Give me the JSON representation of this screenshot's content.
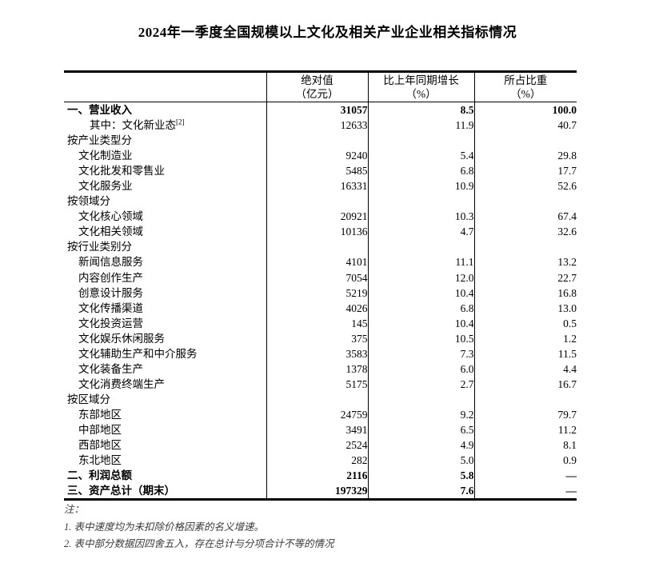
{
  "page": {
    "title": "2024年一季度全国规模以上文化及相关产业企业相关指标情况"
  },
  "table": {
    "columns": [
      {
        "line1": "绝对值",
        "line2": "（亿元）"
      },
      {
        "line1": "比上年同期增长",
        "line2": "（%）"
      },
      {
        "line1": "所占比重",
        "line2": "（%）"
      }
    ],
    "rows": [
      {
        "label": "一、营业收入",
        "indent": 0,
        "bold": true,
        "abs": "31057",
        "growth": "8.5",
        "share": "100.0"
      },
      {
        "label": "其中：文化新业态",
        "sup": "[2]",
        "indent": 2,
        "bold": false,
        "abs": "12633",
        "growth": "11.9",
        "share": "40.7"
      },
      {
        "label": "按产业类型分",
        "indent": 0,
        "bold": false,
        "abs": "",
        "growth": "",
        "share": ""
      },
      {
        "label": "文化制造业",
        "indent": 1,
        "bold": false,
        "abs": "9240",
        "growth": "5.4",
        "share": "29.8"
      },
      {
        "label": "文化批发和零售业",
        "indent": 1,
        "bold": false,
        "abs": "5485",
        "growth": "6.8",
        "share": "17.7"
      },
      {
        "label": "文化服务业",
        "indent": 1,
        "bold": false,
        "abs": "16331",
        "growth": "10.9",
        "share": "52.6"
      },
      {
        "label": "按领域分",
        "indent": 0,
        "bold": false,
        "abs": "",
        "growth": "",
        "share": ""
      },
      {
        "label": "文化核心领域",
        "indent": 1,
        "bold": false,
        "abs": "20921",
        "growth": "10.3",
        "share": "67.4"
      },
      {
        "label": "文化相关领域",
        "indent": 1,
        "bold": false,
        "abs": "10136",
        "growth": "4.7",
        "share": "32.6"
      },
      {
        "label": "按行业类别分",
        "indent": 0,
        "bold": false,
        "abs": "",
        "growth": "",
        "share": ""
      },
      {
        "label": "新闻信息服务",
        "indent": 1,
        "bold": false,
        "abs": "4101",
        "growth": "11.1",
        "share": "13.2"
      },
      {
        "label": "内容创作生产",
        "indent": 1,
        "bold": false,
        "abs": "7054",
        "growth": "12.0",
        "share": "22.7"
      },
      {
        "label": "创意设计服务",
        "indent": 1,
        "bold": false,
        "abs": "5219",
        "growth": "10.4",
        "share": "16.8"
      },
      {
        "label": "文化传播渠道",
        "indent": 1,
        "bold": false,
        "abs": "4026",
        "growth": "6.8",
        "share": "13.0"
      },
      {
        "label": "文化投资运营",
        "indent": 1,
        "bold": false,
        "abs": "145",
        "growth": "10.4",
        "share": "0.5"
      },
      {
        "label": "文化娱乐休闲服务",
        "indent": 1,
        "bold": false,
        "abs": "375",
        "growth": "10.5",
        "share": "1.2"
      },
      {
        "label": "文化辅助生产和中介服务",
        "indent": 1,
        "bold": false,
        "abs": "3583",
        "growth": "7.3",
        "share": "11.5"
      },
      {
        "label": "文化装备生产",
        "indent": 1,
        "bold": false,
        "abs": "1378",
        "growth": "6.0",
        "share": "4.4"
      },
      {
        "label": "文化消费终端生产",
        "indent": 1,
        "bold": false,
        "abs": "5175",
        "growth": "2.7",
        "share": "16.7"
      },
      {
        "label": "按区域分",
        "indent": 0,
        "bold": false,
        "abs": "",
        "growth": "",
        "share": ""
      },
      {
        "label": "东部地区",
        "indent": 1,
        "bold": false,
        "abs": "24759",
        "growth": "9.2",
        "share": "79.7"
      },
      {
        "label": "中部地区",
        "indent": 1,
        "bold": false,
        "abs": "3491",
        "growth": "6.5",
        "share": "11.2"
      },
      {
        "label": "西部地区",
        "indent": 1,
        "bold": false,
        "abs": "2524",
        "growth": "4.9",
        "share": "8.1"
      },
      {
        "label": "东北地区",
        "indent": 1,
        "bold": false,
        "abs": "282",
        "growth": "5.0",
        "share": "0.9"
      },
      {
        "label": "二、利润总额",
        "indent": 0,
        "bold": true,
        "abs": "2116",
        "growth": "5.8",
        "share": "—"
      },
      {
        "label": "三、资产总计（期末）",
        "indent": 0,
        "bold": true,
        "abs": "197329",
        "growth": "7.6",
        "share": "—"
      }
    ]
  },
  "notes": {
    "heading": "注：",
    "items": [
      "1. 表中速度均为未扣除价格因素的名义增速。",
      "2. 表中部分数据因四舍五入，存在总计与分项合计不等的情况"
    ]
  }
}
